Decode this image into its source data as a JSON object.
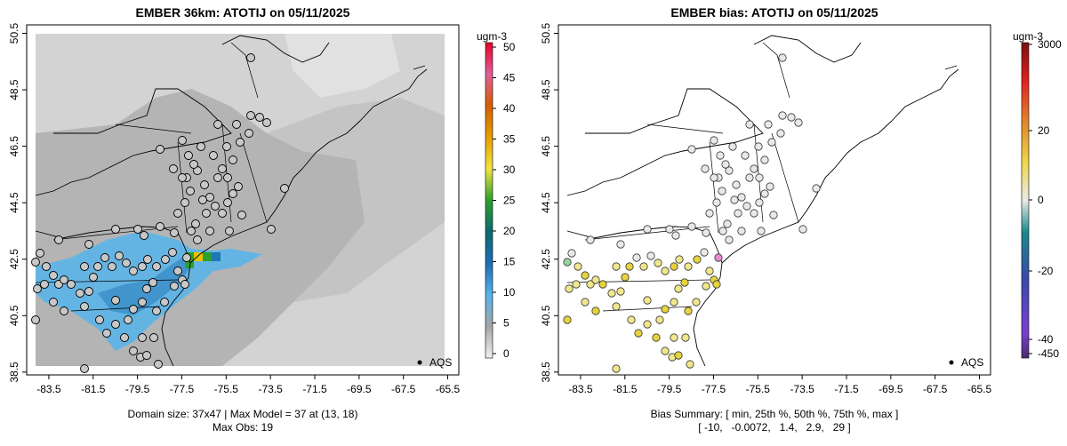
{
  "panels": [
    {
      "title": "EMBER 36km: ATOTIJ on 05/11/2025",
      "legend_unit": "ugm-3",
      "legend_ticks": [
        "0",
        "5",
        "10",
        "15",
        "20",
        "25",
        "30",
        "35",
        "40",
        "45",
        "50"
      ],
      "footer_lines": [
        "Domain size: 37x47 | Max Model = 37 at (13, 18)",
        "Max Obs: 19"
      ],
      "marker_label": "AQS"
    },
    {
      "title": "EMBER bias: ATOTIJ on 05/11/2025",
      "legend_unit": "ugm-3",
      "legend_ticks": [
        "-450",
        "-40",
        "-20",
        "0",
        "20",
        "3000"
      ],
      "footer_lines": [
        "Bias Summary: [ min, 25th %, 50th %, 75th %, max ]",
        "[ -10,   -0.0072,   1.4,   2.9,   29 ]"
      ],
      "marker_label": "AQS"
    }
  ],
  "axes": {
    "x_ticks": [
      "-83.5",
      "-81.5",
      "-79.5",
      "-77.5",
      "-75.5",
      "-73.5",
      "-71.5",
      "-69.5",
      "-67.5",
      "-65.5"
    ],
    "y_ticks": [
      "38.5",
      "40.5",
      "42.5",
      "44.5",
      "46.5",
      "48.5",
      "50.5"
    ],
    "lon_range": [
      -84.5,
      -65.0
    ],
    "lat_range": [
      38.4,
      50.8
    ]
  },
  "colors": {
    "domain_fill": "#d3d3d3",
    "domain_dark": "#a8a8a8",
    "plume_blue": "#5ab4e8",
    "hotspot": [
      "#2ca02c",
      "#e8c200",
      "#1f77b4"
    ],
    "bias_colors": [
      "#e8e8e8",
      "#f0e68c",
      "#e6d23c",
      "#98d4a0",
      "#e88bd0"
    ]
  }
}
